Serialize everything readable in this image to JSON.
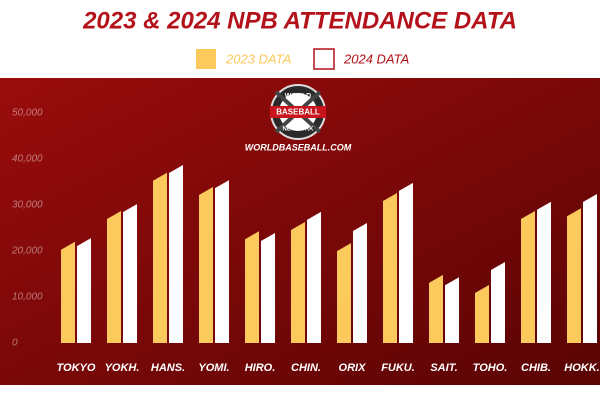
{
  "chart_data": {
    "type": "bar",
    "title": "2023 & 2024 NPB ATTENDANCE DATA",
    "categories": [
      "TOKYO",
      "YOKH.",
      "HANS.",
      "YOMI.",
      "HIRO.",
      "CHIN.",
      "ORIX",
      "FUKU.",
      "SAIT.",
      "TOHO.",
      "CHIB.",
      "HOKK."
    ],
    "series": [
      {
        "name": "2023 DATA",
        "color": "#fcc95c",
        "values": [
          22000,
          28700,
          37000,
          33900,
          24300,
          26300,
          21700,
          32600,
          14800,
          12600,
          28700,
          29300
        ]
      },
      {
        "name": "2024 DATA",
        "color": "#ffffff",
        "values": [
          22800,
          30200,
          38700,
          35400,
          23900,
          28500,
          26100,
          34800,
          14300,
          17600,
          30700,
          32400
        ]
      }
    ],
    "ylim": [
      0,
      50000
    ],
    "yticks": [
      0,
      {
        "value": 10000,
        "label": "10,000"
      },
      {
        "value": 20000,
        "label": "20,000"
      },
      {
        "value": 30000,
        "label": "30,000"
      },
      {
        "value": 40000,
        "label": "40,000"
      },
      {
        "value": 50000,
        "label": "50,000"
      }
    ],
    "grid": false,
    "legend": "top",
    "logo": {
      "top": "WORLD",
      "middle": "BASEBALL",
      "bottom": "NETWORK",
      "site": "WORLDBASEBALL.COM"
    }
  }
}
